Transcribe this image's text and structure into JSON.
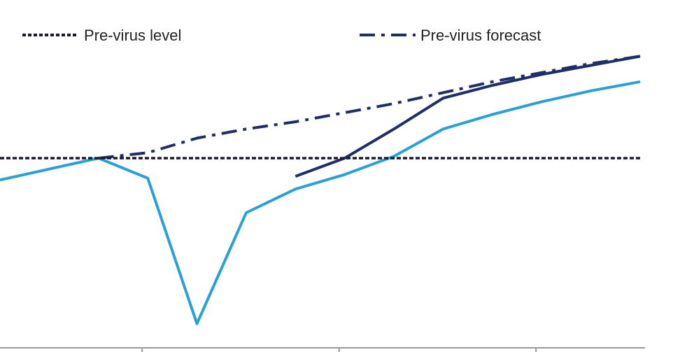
{
  "chart_data": {
    "type": "line",
    "title": "",
    "xlabel": "",
    "ylabel": "",
    "x": [
      0,
      1,
      2,
      3,
      4,
      5,
      6,
      7,
      8,
      9,
      10,
      11,
      12,
      13
    ],
    "ylim": [
      -10,
      8
    ],
    "grid": false,
    "legend_position": "top",
    "legend": [
      {
        "label": "Pre-virus level",
        "style": "dotted",
        "color": "#1b1b2e"
      },
      {
        "label": "Pre-virus forecast",
        "style": "dash-dot",
        "color": "#1f2f66"
      }
    ],
    "series": [
      {
        "key": "dark",
        "style": "solid",
        "color": "#1f2f66",
        "values": [
          null,
          null,
          null,
          null,
          null,
          null,
          -1.0,
          0.0,
          1.6,
          3.3,
          4.0,
          4.6,
          5.1,
          5.6
        ]
      },
      {
        "key": "light",
        "style": "solid",
        "color": "#2aa1d6",
        "values": [
          -1.2,
          -0.6,
          0.0,
          -1.1,
          -9.1,
          -3.0,
          -1.7,
          -0.9,
          0.1,
          1.6,
          2.4,
          3.1,
          3.7,
          4.2
        ]
      },
      {
        "key": "forecast",
        "style": "dash-dot",
        "color": "#1f2f66",
        "values": [
          null,
          null,
          0.0,
          0.3,
          1.1,
          1.6,
          2.0,
          2.5,
          3.0,
          3.6,
          4.2,
          4.7,
          5.2,
          5.6
        ]
      },
      {
        "key": "level",
        "style": "dotted",
        "color": "#1b1b2e",
        "values": [
          0,
          0,
          0,
          0,
          0,
          0,
          0,
          0,
          0,
          0,
          0,
          0,
          0,
          0
        ]
      }
    ],
    "x_ticks": [
      3,
      7,
      11
    ]
  }
}
